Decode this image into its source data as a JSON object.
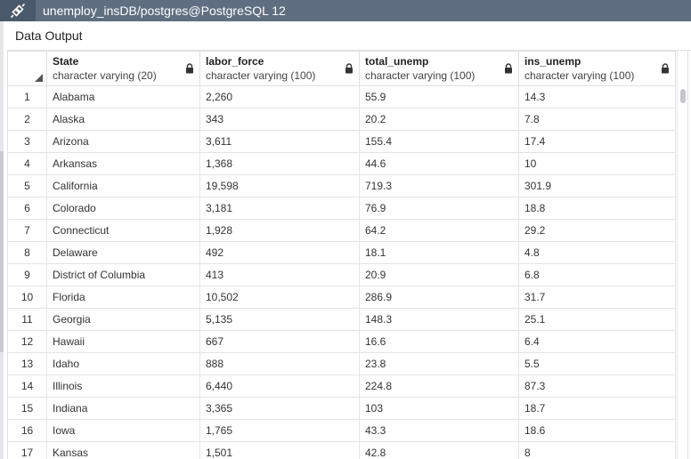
{
  "titlebar": {
    "icon": "plug-connection-icon",
    "title": "unemploy_insDB/postgres@PostgreSQL 12",
    "background": "#5f6e80"
  },
  "panel": {
    "tab_label": "Data Output"
  },
  "grid": {
    "columns": [
      {
        "name": "State",
        "type": "character varying (20)"
      },
      {
        "name": "labor_force",
        "type": "character varying (100)"
      },
      {
        "name": "total_unemp",
        "type": "character varying (100)"
      },
      {
        "name": "ins_unemp",
        "type": "character varying (100)"
      }
    ],
    "rows": [
      {
        "n": "1",
        "cells": [
          "Alabama",
          "2,260",
          "55.9",
          "14.3"
        ]
      },
      {
        "n": "2",
        "cells": [
          "Alaska",
          "343",
          "20.2",
          "7.8"
        ]
      },
      {
        "n": "3",
        "cells": [
          "Arizona",
          "3,611",
          "155.4",
          "17.4"
        ]
      },
      {
        "n": "4",
        "cells": [
          "Arkansas",
          "1,368",
          "44.6",
          "10"
        ]
      },
      {
        "n": "5",
        "cells": [
          "California",
          "19,598",
          "719.3",
          "301.9"
        ]
      },
      {
        "n": "6",
        "cells": [
          "Colorado",
          "3,181",
          "76.9",
          "18.8"
        ]
      },
      {
        "n": "7",
        "cells": [
          "Connecticut",
          "1,928",
          "64.2",
          "29.2"
        ]
      },
      {
        "n": "8",
        "cells": [
          "Delaware",
          "492",
          "18.1",
          "4.8"
        ]
      },
      {
        "n": "9",
        "cells": [
          "District of Columbia",
          "413",
          "20.9",
          "6.8"
        ]
      },
      {
        "n": "10",
        "cells": [
          "Florida",
          "10,502",
          "286.9",
          "31.7"
        ]
      },
      {
        "n": "11",
        "cells": [
          "Georgia",
          "5,135",
          "148.3",
          "25.1"
        ]
      },
      {
        "n": "12",
        "cells": [
          "Hawaii",
          "667",
          "16.6",
          "6.4"
        ]
      },
      {
        "n": "13",
        "cells": [
          "Idaho",
          "888",
          "23.8",
          "5.5"
        ]
      },
      {
        "n": "14",
        "cells": [
          "Illinois",
          "6,440",
          "224.8",
          "87.3"
        ]
      },
      {
        "n": "15",
        "cells": [
          "Indiana",
          "3,365",
          "103",
          "18.7"
        ]
      },
      {
        "n": "16",
        "cells": [
          "Iowa",
          "1,765",
          "43.3",
          "18.6"
        ]
      },
      {
        "n": "17",
        "cells": [
          "Kansas",
          "1,501",
          "42.8",
          "8"
        ]
      }
    ]
  }
}
